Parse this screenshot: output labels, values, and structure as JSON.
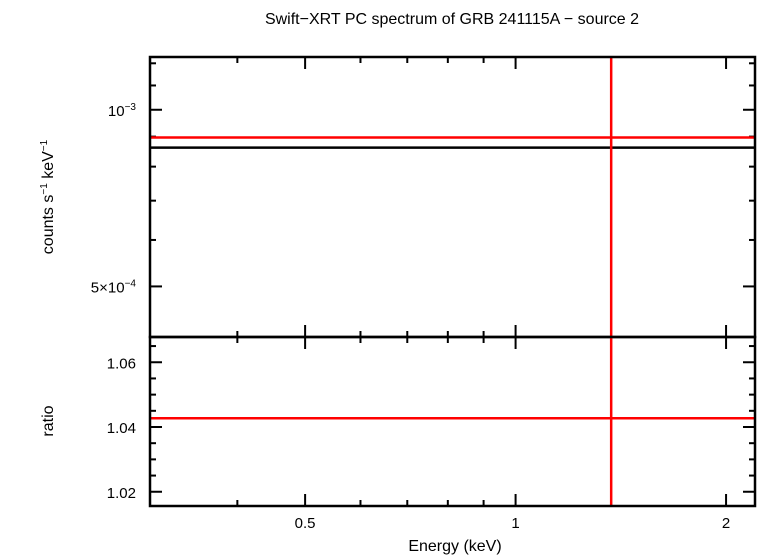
{
  "chart_data": [
    {
      "type": "line",
      "panel": "spectrum",
      "title": "Swift−XRT PC spectrum of GRB 241115A − source 2",
      "xlabel": "",
      "ylabel_parts": [
        "counts s",
        "−1",
        " keV",
        "−1"
      ],
      "x_scale": "log",
      "y_scale": "log",
      "xlim": [
        0.3,
        2.2
      ],
      "ylim": [
        0.00041,
        0.00123
      ],
      "y_ticks": [
        {
          "value": 0.001,
          "label_parts": [
            "10",
            "−3"
          ]
        },
        {
          "value": 0.0005,
          "label_parts": [
            "5×10",
            "−4"
          ]
        }
      ],
      "series": [
        {
          "color": "#000000",
          "points": [
            {
              "x": 0.3,
              "y": 0.000862
            },
            {
              "x": 2.2,
              "y": 0.000862
            }
          ]
        },
        {
          "color": "#ff0000",
          "points": [
            {
              "x": 0.3,
              "y": 0.000897
            },
            {
              "x": 2.2,
              "y": 0.000897
            }
          ]
        }
      ],
      "vertical_lines": [
        {
          "x": 1.37,
          "color": "#ff0000"
        }
      ]
    },
    {
      "type": "line",
      "panel": "ratio",
      "xlabel": "Energy (keV)",
      "ylabel": "ratio",
      "x_scale": "log",
      "xlim": [
        0.3,
        2.2
      ],
      "ylim": [
        1.0156,
        1.0678
      ],
      "x_ticks": [
        {
          "value": 0.5,
          "label": "0.5"
        },
        {
          "value": 1,
          "label": "1"
        },
        {
          "value": 2,
          "label": "2"
        }
      ],
      "y_ticks": [
        {
          "value": 1.02,
          "label": "1.02"
        },
        {
          "value": 1.04,
          "label": "1.04"
        },
        {
          "value": 1.06,
          "label": "1.06"
        }
      ],
      "series": [
        {
          "color": "#ff0000",
          "points": [
            {
              "x": 0.3,
              "y": 1.0427
            },
            {
              "x": 2.2,
              "y": 1.0427
            }
          ]
        }
      ],
      "vertical_lines": [
        {
          "x": 1.37,
          "color": "#ff0000"
        }
      ]
    }
  ]
}
